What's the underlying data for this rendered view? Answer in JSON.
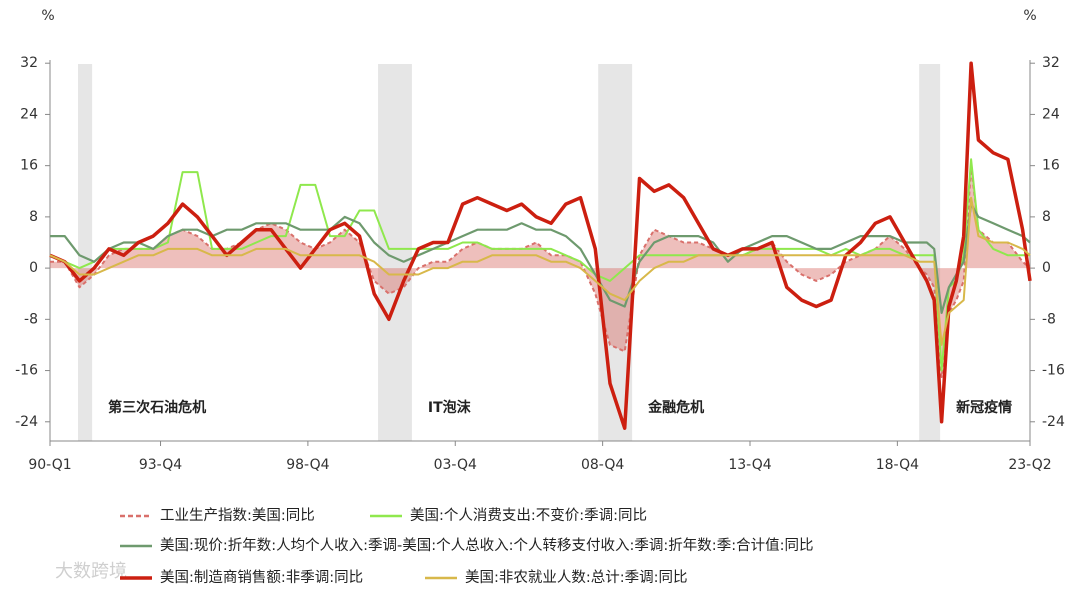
{
  "chart_data": {
    "type": "line",
    "y_unit": "%",
    "y2_unit": "%",
    "x": [
      1990,
      1990.5,
      1991,
      1991.5,
      1992,
      1992.5,
      1993,
      1993.5,
      1994,
      1994.5,
      1995,
      1995.5,
      1996,
      1996.5,
      1997,
      1997.5,
      1998,
      1998.5,
      1999,
      1999.5,
      2000,
      2000.5,
      2001,
      2001.5,
      2002,
      2002.5,
      2003,
      2003.5,
      2004,
      2004.5,
      2005,
      2005.5,
      2006,
      2006.5,
      2007,
      2007.5,
      2008,
      2008.5,
      2009,
      2009.5,
      2010,
      2010.5,
      2011,
      2011.5,
      2012,
      2012.5,
      2013,
      2013.5,
      2014,
      2014.5,
      2015,
      2015.5,
      2016,
      2016.5,
      2017,
      2017.5,
      2018,
      2018.5,
      2019,
      2019.5,
      2019.75,
      2020,
      2020.25,
      2020.5,
      2020.75,
      2021,
      2021.25,
      2021.5,
      2022,
      2022.5,
      2023,
      2023.25
    ],
    "xlim": [
      1990,
      2023.25
    ],
    "xticks": [
      {
        "value": 1990,
        "label": "90-Q1"
      },
      {
        "value": 1993.75,
        "label": "93-Q4"
      },
      {
        "value": 1998.75,
        "label": "98-Q4"
      },
      {
        "value": 2003.75,
        "label": "03-Q4"
      },
      {
        "value": 2008.75,
        "label": "08-Q4"
      },
      {
        "value": 2013.75,
        "label": "13-Q4"
      },
      {
        "value": 2018.75,
        "label": "18-Q4"
      },
      {
        "value": 2023.25,
        "label": "23-Q2"
      }
    ],
    "ylim": [
      -27,
      32.5
    ],
    "yticks": [
      -24,
      -16,
      -8,
      0,
      8,
      16,
      24,
      32
    ],
    "y2lim": [
      -27,
      32.5
    ],
    "y2ticks": [
      -24,
      -16,
      -8,
      0,
      8,
      16,
      24,
      32
    ],
    "shaded_periods": [
      [
        1990.95,
        1991.43
      ],
      [
        2001.13,
        2002.28
      ],
      [
        2008.6,
        2009.75
      ],
      [
        2019.49,
        2020.2
      ]
    ],
    "annotations": [
      "第三次石油危机",
      "IT泡沫",
      "金融危机",
      "新冠疫情"
    ],
    "watermark": "大数跨境",
    "series": [
      {
        "name": "工业生产指数:美国:同比",
        "color": "#d9706b",
        "dash": true,
        "area": true,
        "width": 2,
        "values": [
          1,
          1,
          -3,
          -1,
          2,
          3,
          3,
          3,
          5,
          6,
          5,
          3,
          3,
          4,
          6,
          7,
          6,
          4,
          3,
          4,
          6,
          4,
          -2,
          -4,
          -3,
          0,
          1,
          1,
          3,
          4,
          3,
          3,
          3,
          4,
          2,
          2,
          1,
          -4,
          -12,
          -13,
          2,
          6,
          5,
          4,
          4,
          3,
          2,
          2,
          3,
          4,
          1,
          -1,
          -2,
          -1,
          1,
          2,
          3,
          5,
          3,
          0,
          -1,
          -3,
          -17,
          -7,
          -5,
          -2,
          16,
          6,
          4,
          4,
          1,
          0
        ]
      },
      {
        "name": "美国:个人消费支出:不变价:季调:同比",
        "color": "#8fe84d",
        "width": 2,
        "values": [
          2,
          1,
          0,
          1,
          3,
          3,
          3,
          3,
          4,
          15,
          15,
          3,
          3,
          3,
          4,
          5,
          5,
          13,
          13,
          5,
          5,
          9,
          9,
          3,
          3,
          3,
          3,
          3,
          4,
          4,
          3,
          3,
          3,
          3,
          3,
          2,
          1,
          -1,
          -2,
          0,
          2,
          2,
          2,
          2,
          2,
          2,
          2,
          2,
          3,
          3,
          3,
          3,
          3,
          2,
          3,
          2,
          3,
          3,
          2,
          2,
          2,
          2,
          -16,
          -3,
          -2,
          2,
          17,
          6,
          3,
          2,
          2,
          2
        ]
      },
      {
        "name": "美国:现价:折年数:人均个人收入:季调-美国:个人总收入:个人转移支付收入:季调:折年数:季:合计值:同比",
        "color": "#6e9a6e",
        "width": 2.2,
        "values": [
          5,
          5,
          2,
          1,
          3,
          4,
          4,
          3,
          5,
          6,
          6,
          5,
          6,
          6,
          7,
          7,
          7,
          6,
          6,
          6,
          8,
          7,
          4,
          2,
          1,
          2,
          3,
          4,
          5,
          6,
          6,
          6,
          7,
          6,
          6,
          5,
          3,
          -1,
          -5,
          -6,
          1,
          4,
          5,
          5,
          5,
          4,
          1,
          3,
          4,
          5,
          5,
          4,
          3,
          3,
          4,
          5,
          5,
          5,
          4,
          4,
          4,
          3,
          -7,
          -3,
          -1,
          1,
          10,
          8,
          7,
          6,
          5,
          4
        ]
      },
      {
        "name": "美国:制造商销售额:非季调:同比",
        "color": "#cc1f10",
        "width": 3.5,
        "values": [
          2,
          1,
          -2,
          0,
          3,
          2,
          4,
          5,
          7,
          10,
          8,
          5,
          2,
          4,
          6,
          6,
          3,
          0,
          3,
          6,
          7,
          5,
          -4,
          -8,
          -2,
          3,
          4,
          4,
          10,
          11,
          10,
          9,
          10,
          8,
          7,
          10,
          11,
          3,
          -18,
          -25,
          14,
          12,
          13,
          11,
          7,
          3,
          2,
          3,
          3,
          4,
          -3,
          -5,
          -6,
          -5,
          2,
          4,
          7,
          8,
          4,
          0,
          -2,
          -5,
          -24,
          -6,
          -2,
          5,
          32,
          20,
          18,
          17,
          6,
          -2
        ]
      },
      {
        "name": "美国:非农就业人数:总计:季调:同比",
        "color": "#d8b84a",
        "width": 2,
        "values": [
          2,
          1,
          -1,
          -1,
          0,
          1,
          2,
          2,
          3,
          3,
          3,
          2,
          2,
          2,
          3,
          3,
          3,
          2,
          2,
          2,
          2,
          2,
          1,
          -1,
          -1,
          -1,
          0,
          0,
          1,
          1,
          2,
          2,
          2,
          2,
          1,
          1,
          0,
          -2,
          -4,
          -5,
          -2,
          0,
          1,
          1,
          2,
          2,
          2,
          2,
          2,
          2,
          2,
          2,
          2,
          2,
          2,
          2,
          2,
          2,
          2,
          1,
          1,
          1,
          -12,
          -7,
          -6,
          -5,
          11,
          5,
          4,
          4,
          3,
          2
        ]
      }
    ]
  }
}
